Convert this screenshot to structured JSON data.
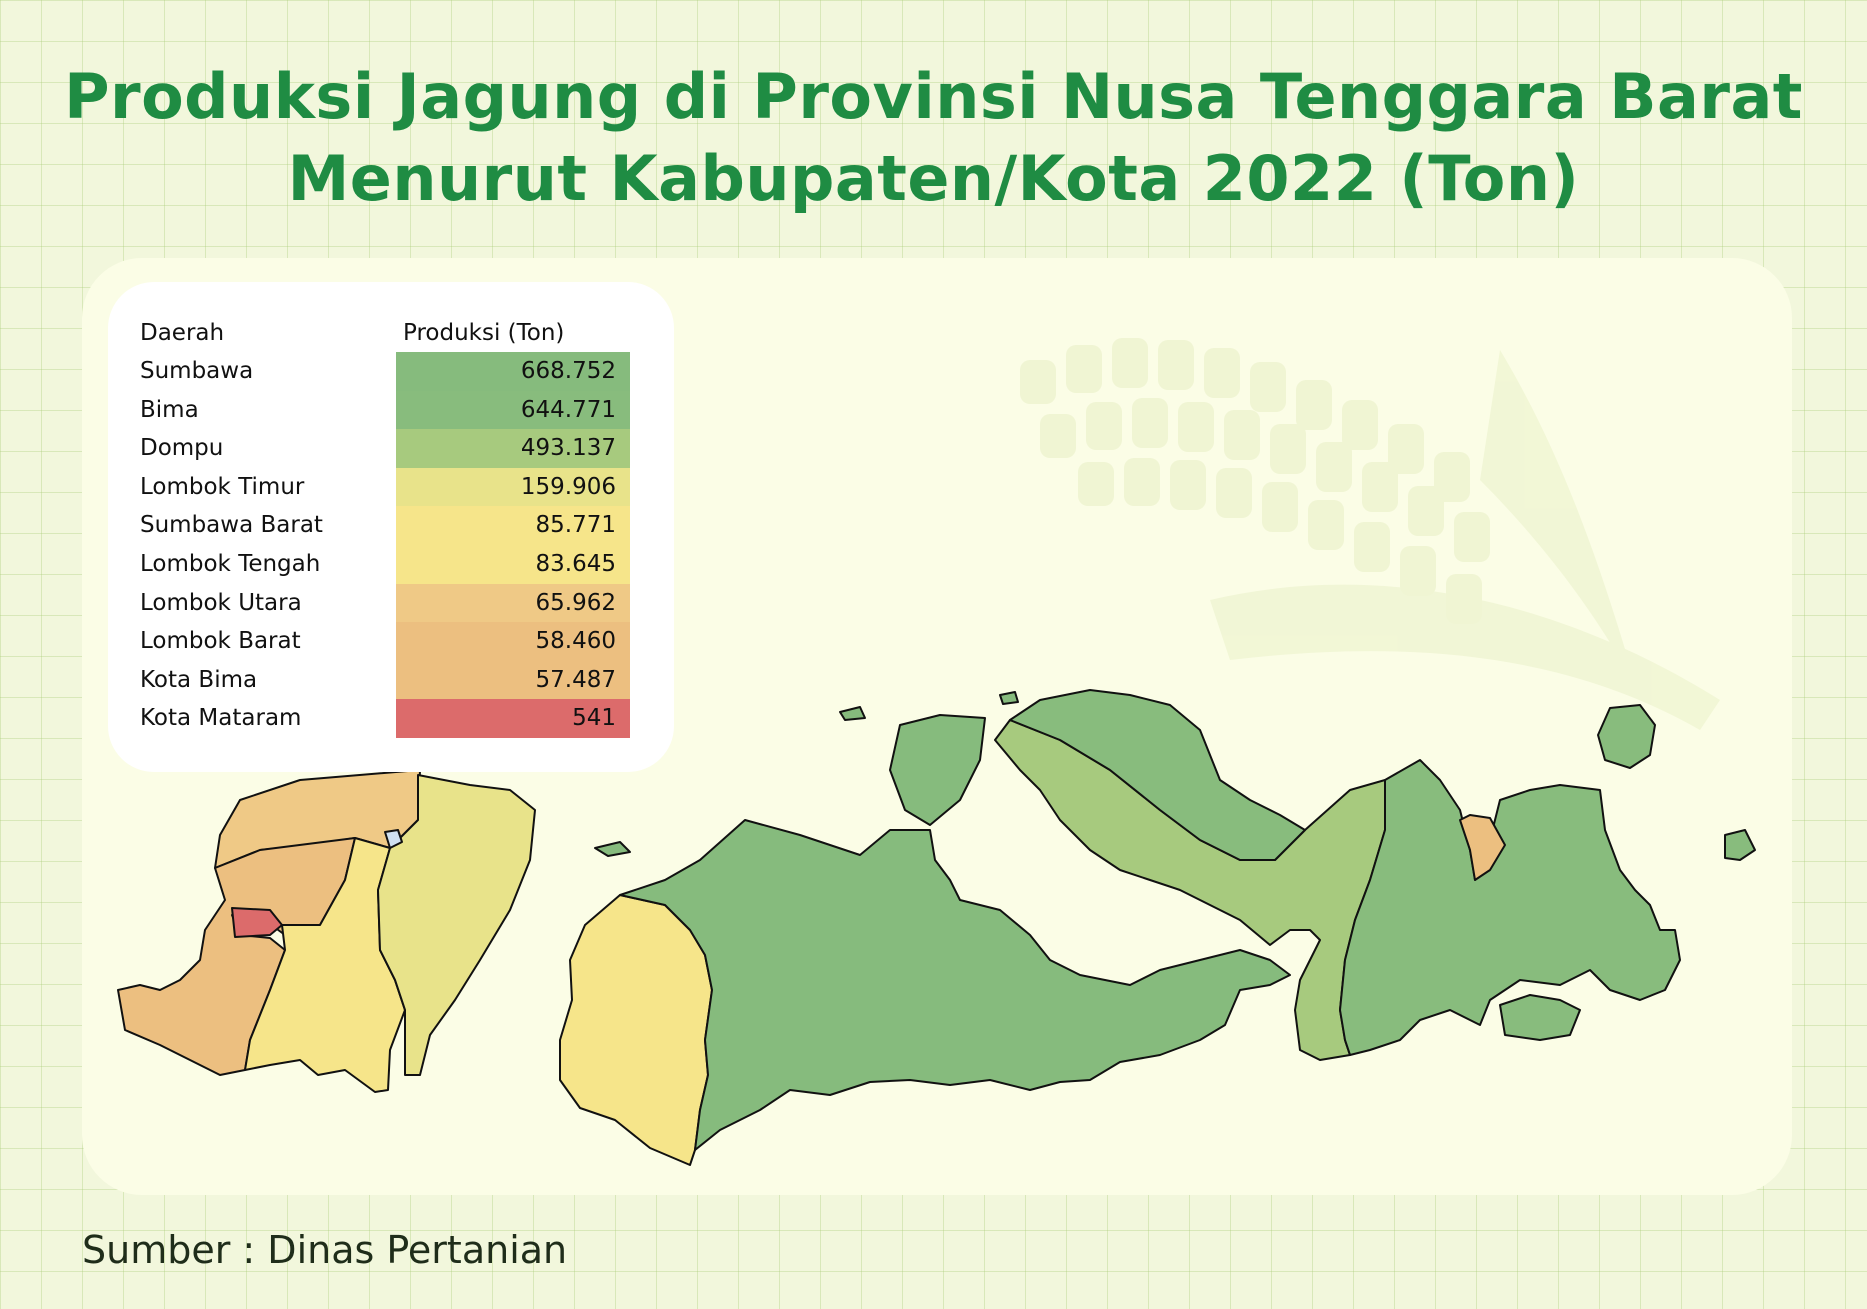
{
  "title": {
    "line1": "Produksi Jagung di Provinsi Nusa Tenggara Barat",
    "line2": "Menurut Kabupaten/Kota 2022 (Ton)"
  },
  "legend": {
    "col_region": "Daerah",
    "col_value": "Produksi (Ton)",
    "rows": [
      {
        "name": "Sumbawa",
        "value": "668.752",
        "color": "#86bb7d"
      },
      {
        "name": "Bima",
        "value": "644.771",
        "color": "#88bc7d"
      },
      {
        "name": "Dompu",
        "value": "493.137",
        "color": "#a7ca7e"
      },
      {
        "name": "Lombok Timur",
        "value": "159.906",
        "color": "#e8e38a"
      },
      {
        "name": "Sumbawa Barat",
        "value": "85.771",
        "color": "#f6e58a"
      },
      {
        "name": "Lombok Tengah",
        "value": "83.645",
        "color": "#f6e58a"
      },
      {
        "name": "Lombok Utara",
        "value": "65.962",
        "color": "#efc986"
      },
      {
        "name": "Lombok Barat",
        "value": "58.460",
        "color": "#ecbf80"
      },
      {
        "name": "Kota Bima",
        "value": "57.487",
        "color": "#ecbf80"
      },
      {
        "name": "Kota Mataram",
        "value": "541",
        "color": "#dc6b6b"
      }
    ]
  },
  "source": "Sumber : Dinas Pertanian"
}
